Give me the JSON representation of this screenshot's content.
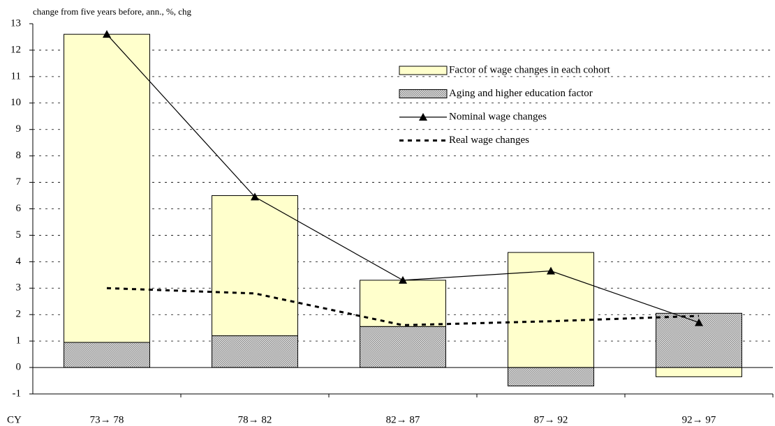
{
  "chart_data": {
    "type": "bar-line",
    "title": "change from five years before, ann., %, chg",
    "x_label": "CY",
    "categories": [
      "73→ 78",
      "78→ 82",
      "82→ 87",
      "87→ 92",
      "92→ 97"
    ],
    "series": [
      {
        "name": "Aging and higher education factor",
        "kind": "bar",
        "color": "#8c8c8c",
        "pattern": "crosshatch",
        "values": [
          0.95,
          1.2,
          1.55,
          -0.7,
          2.05
        ]
      },
      {
        "name": "Factor of wage changes in each cohort",
        "kind": "bar",
        "color": "#ffffcc",
        "values": [
          11.65,
          5.3,
          1.75,
          4.35,
          -0.35
        ]
      },
      {
        "name": "Nominal wage changes",
        "kind": "line",
        "color": "#000000",
        "marker": "triangle",
        "values": [
          12.6,
          6.45,
          3.3,
          3.65,
          1.7
        ]
      },
      {
        "name": "Real wage changes",
        "kind": "line",
        "color": "#000000",
        "dashed": true,
        "values": [
          3.0,
          2.8,
          1.6,
          1.75,
          1.95
        ]
      }
    ],
    "legend_order": [
      1,
      0,
      2,
      3
    ],
    "ylim": [
      -1,
      13
    ],
    "yticks": [
      -1,
      0,
      1,
      2,
      3,
      4,
      5,
      6,
      7,
      8,
      9,
      10,
      11,
      12,
      13
    ],
    "grid": true
  }
}
